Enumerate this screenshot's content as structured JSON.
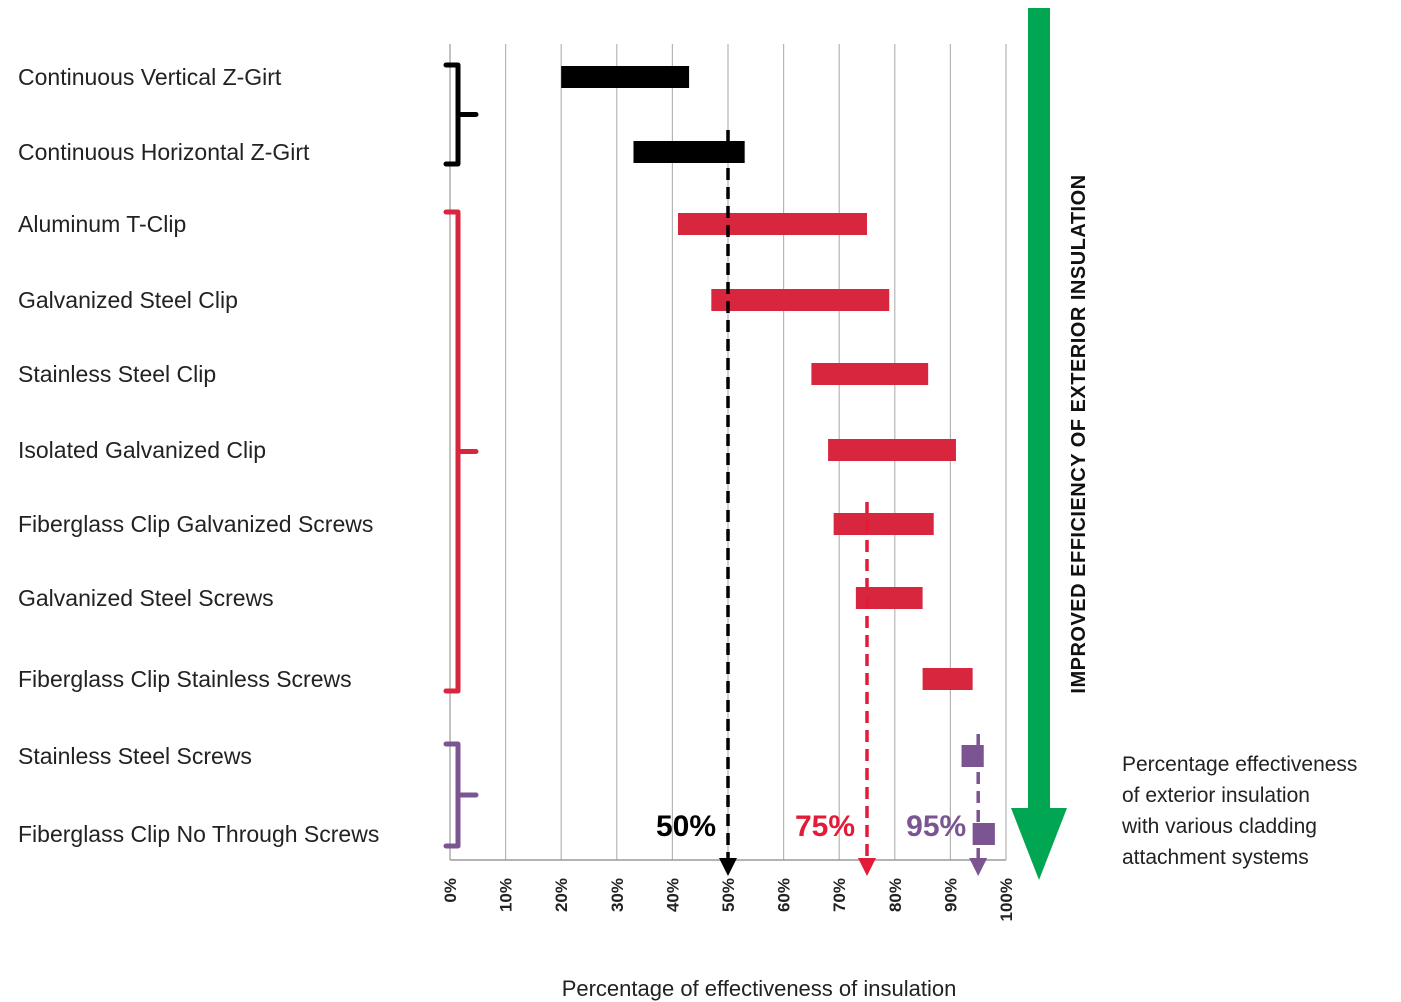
{
  "chart_data": {
    "type": "bar",
    "orientation": "horizontal-range",
    "categories": [
      "Continuous Vertical Z-Girt",
      "Continuous Horizontal Z-Girt",
      "Aluminum T-Clip",
      "Galvanized Steel Clip",
      "Stainless Steel Clip",
      "Isolated Galvanized Clip",
      "Fiberglass Clip Galvanized Screws",
      "Galvanized Steel Screws",
      "Fiberglass Clip Stainless Screws",
      "Stainless Steel Screws",
      "Fiberglass Clip No Through Screws"
    ],
    "ranges": [
      {
        "start": 20,
        "end": 43
      },
      {
        "start": 33,
        "end": 53
      },
      {
        "start": 41,
        "end": 75
      },
      {
        "start": 47,
        "end": 79
      },
      {
        "start": 65,
        "end": 86
      },
      {
        "start": 68,
        "end": 91
      },
      {
        "start": 69,
        "end": 87
      },
      {
        "start": 73,
        "end": 85
      },
      {
        "start": 85,
        "end": 94
      },
      {
        "start": 92,
        "end": 96
      },
      {
        "start": 94,
        "end": 98
      }
    ],
    "groups": [
      {
        "first": 0,
        "last": 1,
        "color": "#000000"
      },
      {
        "first": 2,
        "last": 8,
        "color": "#d7263d"
      },
      {
        "first": 9,
        "last": 10,
        "color": "#7b5591"
      }
    ],
    "markers": [
      {
        "value": 50,
        "label": "50%",
        "color": "#000000",
        "from_category": 1
      },
      {
        "value": 75,
        "label": "75%",
        "color": "#e31b38",
        "from_category": 6
      },
      {
        "value": 95,
        "label": "95%",
        "color": "#7b5591",
        "from_category": 9
      }
    ],
    "xlim": [
      0,
      100
    ],
    "x_ticks": [
      "0%",
      "10%",
      "20%",
      "30%",
      "40%",
      "50%",
      "60%",
      "70%",
      "80%",
      "90%",
      "100%"
    ],
    "xlabel": "Percentage of effectiveness of insulation",
    "grid": true,
    "side_arrow": {
      "label": "IMPROVED EFFICIENCY OF EXTERIOR INSULATION",
      "color": "#00a651"
    },
    "caption_lines": [
      "Percentage effectiveness",
      "of exterior insulation",
      "with various cladding",
      "attachment systems"
    ]
  }
}
